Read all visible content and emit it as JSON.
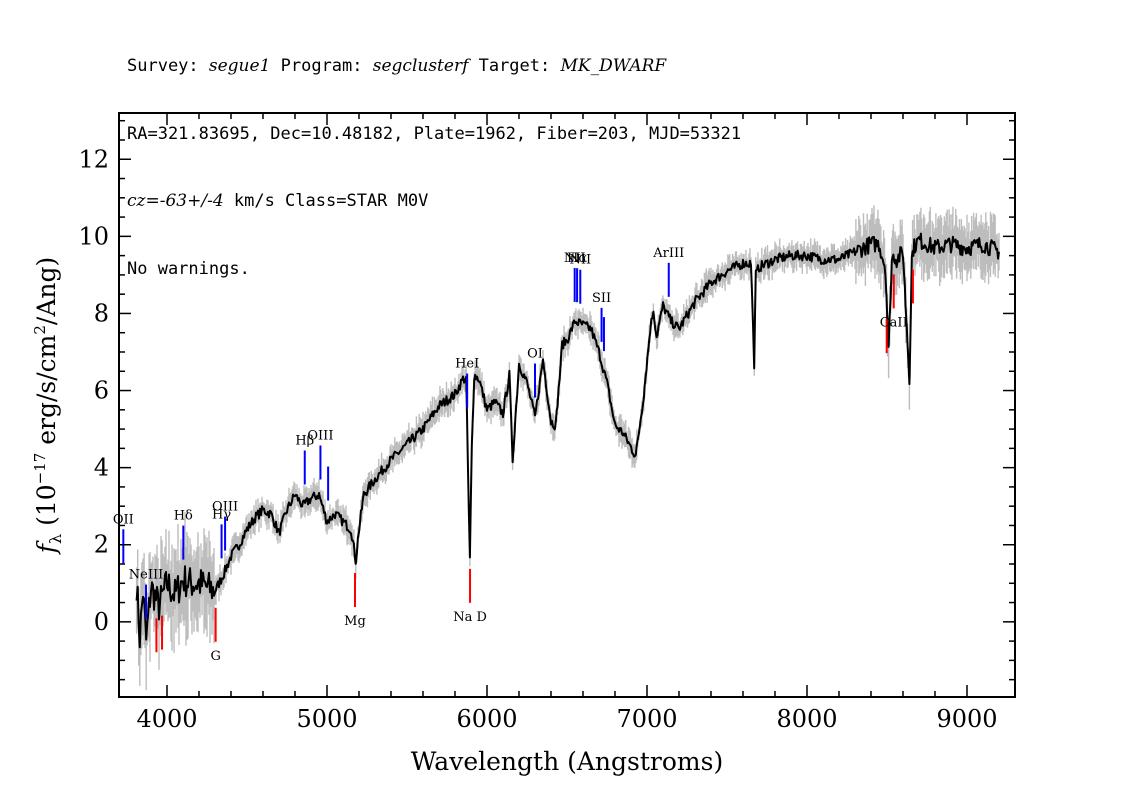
{
  "header": {
    "line1": {
      "survey_label": "Survey: ",
      "survey": "segue1",
      "program_label": " Program: ",
      "program": "segclusterf",
      "target_label": " Target: ",
      "target": "MK_DWARF"
    },
    "line2": "RA=321.83695, Dec=10.48182, Plate=1962, Fiber=203, MJD=53321",
    "line3": {
      "cz": "cz=-63+/-4",
      "rest": " km/s Class=STAR M0V"
    },
    "line4": "No warnings."
  },
  "chart_data": {
    "type": "line",
    "xlabel": "Wavelength (Angstroms)",
    "ylabel": "f_λ (10^-17 erg/s/cm^2/Ang)",
    "xlim": [
      3700,
      9300
    ],
    "ylim": [
      -1.95,
      13.2
    ],
    "x_ticks": [
      4000,
      5000,
      6000,
      7000,
      8000,
      9000
    ],
    "y_ticks": [
      0,
      2,
      4,
      6,
      8,
      10,
      12
    ],
    "colors": {
      "flux": "#000000",
      "error": "#bdbdbd",
      "emission": "#0000ff",
      "absorption": "#ff0000"
    },
    "series": [
      {
        "role": "flux",
        "x": [
          3810,
          3830,
          3850,
          3870,
          3900,
          3950,
          4000,
          4050,
          4100,
          4150,
          4200,
          4250,
          4300,
          4350,
          4400,
          4450,
          4500,
          4550,
          4600,
          4650,
          4700,
          4750,
          4800,
          4850,
          4900,
          4950,
          5000,
          5050,
          5100,
          5150,
          5180,
          5200,
          5230,
          5300,
          5400,
          5500,
          5600,
          5700,
          5800,
          5850,
          5870,
          5880,
          5893,
          5905,
          5920,
          5950,
          6000,
          6050,
          6100,
          6140,
          6160,
          6200,
          6250,
          6300,
          6350,
          6400,
          6430,
          6470,
          6500,
          6550,
          6600,
          6650,
          6700,
          6750,
          6800,
          6850,
          6890,
          6930,
          6980,
          7020,
          7040,
          7060,
          7100,
          7150,
          7200,
          7300,
          7400,
          7500,
          7600,
          7650,
          7670,
          7680,
          7700,
          7800,
          7900,
          8000,
          8100,
          8200,
          8300,
          8400,
          8450,
          8490,
          8510,
          8530,
          8545,
          8560,
          8600,
          8640,
          8655,
          8665,
          8680,
          8700,
          8800,
          8900,
          9000,
          9100,
          9200
        ],
        "values": [
          1.0,
          -0.4,
          0.8,
          -0.5,
          0.9,
          0.4,
          1.0,
          0.7,
          1.1,
          1.0,
          1.0,
          0.9,
          0.8,
          1.2,
          1.7,
          2.0,
          2.4,
          2.7,
          2.9,
          2.8,
          2.3,
          2.9,
          3.3,
          3.0,
          3.2,
          3.3,
          2.6,
          2.8,
          2.6,
          2.4,
          1.6,
          2.4,
          3.3,
          3.7,
          4.2,
          4.6,
          5.0,
          5.6,
          5.9,
          6.3,
          6.3,
          4.2,
          1.6,
          4.5,
          6.4,
          6.3,
          5.5,
          5.7,
          5.4,
          6.4,
          4.2,
          6.7,
          6.2,
          5.3,
          6.8,
          5.2,
          5.1,
          7.2,
          7.3,
          7.8,
          7.7,
          7.6,
          7.0,
          6.2,
          5.1,
          4.9,
          4.6,
          4.3,
          5.9,
          7.6,
          8.1,
          7.4,
          8.2,
          7.8,
          7.6,
          8.3,
          8.8,
          9.1,
          9.3,
          9.3,
          6.7,
          9.0,
          9.2,
          9.4,
          9.5,
          9.5,
          9.4,
          9.4,
          9.6,
          9.8,
          9.8,
          9.2,
          7.0,
          9.4,
          9.5,
          9.4,
          9.6,
          6.3,
          9.4,
          9.7,
          9.8,
          9.9,
          9.7,
          9.8,
          9.7,
          9.8,
          9.6
        ]
      }
    ],
    "emission_lines": [
      {
        "label": "OII",
        "x": 3727
      },
      {
        "label": "NeIII",
        "x": 3869
      },
      {
        "label": "Hδ",
        "x": 4102
      },
      {
        "label": "Hγ",
        "x": 4341
      },
      {
        "label": "OIII",
        "x": 4363
      },
      {
        "label": "Hβ",
        "x": 4861
      },
      {
        "label": "OIII",
        "x": 4959
      },
      {
        "label": "",
        "x": 5007
      },
      {
        "label": "HeI",
        "x": 5876
      },
      {
        "label": "OI",
        "x": 6300
      },
      {
        "label": "NII",
        "x": 6548
      },
      {
        "label": "Hα",
        "x": 6563
      },
      {
        "label": "NII",
        "x": 6583
      },
      {
        "label": "SII",
        "x": 6716
      },
      {
        "label": "",
        "x": 6731
      },
      {
        "label": "ArIII",
        "x": 7136
      }
    ],
    "absorption_lines": [
      {
        "label": "",
        "x": 3934
      },
      {
        "label": "",
        "x": 3969
      },
      {
        "label": "G",
        "x": 4304
      },
      {
        "label": "Mg",
        "x": 5175
      },
      {
        "label": "Na D",
        "x": 5894
      },
      {
        "label": "",
        "x": 8498
      },
      {
        "label": "CaII",
        "x": 8542
      },
      {
        "label": "",
        "x": 8662
      }
    ]
  }
}
